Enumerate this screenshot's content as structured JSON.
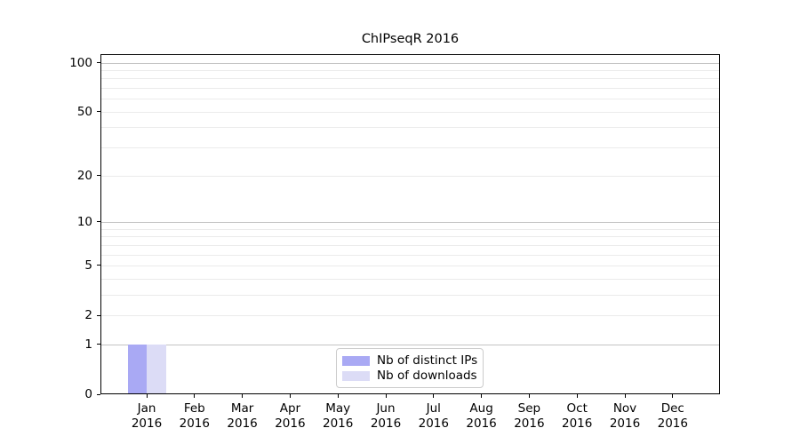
{
  "chart_data": {
    "type": "bar",
    "title": "ChIPseqR 2016",
    "x_labels": [
      [
        "Jan",
        "2016"
      ],
      [
        "Feb",
        "2016"
      ],
      [
        "Mar",
        "2016"
      ],
      [
        "Apr",
        "2016"
      ],
      [
        "May",
        "2016"
      ],
      [
        "Jun",
        "2016"
      ],
      [
        "Jul",
        "2016"
      ],
      [
        "Aug",
        "2016"
      ],
      [
        "Sep",
        "2016"
      ],
      [
        "Oct",
        "2016"
      ],
      [
        "Nov",
        "2016"
      ],
      [
        "Dec",
        "2016"
      ]
    ],
    "series": [
      {
        "name": "Nb of distinct IPs",
        "color": "#a9a9f4",
        "values": [
          1,
          0,
          0,
          0,
          0,
          0,
          0,
          0,
          0,
          0,
          0,
          0
        ]
      },
      {
        "name": "Nb of downloads",
        "color": "#dcdcf6",
        "values": [
          1,
          0,
          0,
          0,
          0,
          0,
          0,
          0,
          0,
          0,
          0,
          0
        ]
      }
    ],
    "y_scale": "log10(1+value)",
    "ylim": [
      0,
      112.6
    ],
    "y_ticks": [
      0,
      1,
      2,
      5,
      10,
      20,
      50,
      100
    ],
    "gridlines": {
      "major": [
        1,
        10,
        100
      ],
      "minor": [
        2,
        3,
        4,
        5,
        6,
        7,
        8,
        9,
        20,
        30,
        40,
        50,
        60,
        70,
        80,
        90
      ],
      "major_color": "#c4c4c4",
      "minor_color": "#ebebeb"
    },
    "legend": {
      "position": "lower center",
      "border_color": "#cccccc",
      "background": "#ffffff"
    },
    "axis_color": "#000000",
    "background": "#ffffff",
    "grid": true
  }
}
